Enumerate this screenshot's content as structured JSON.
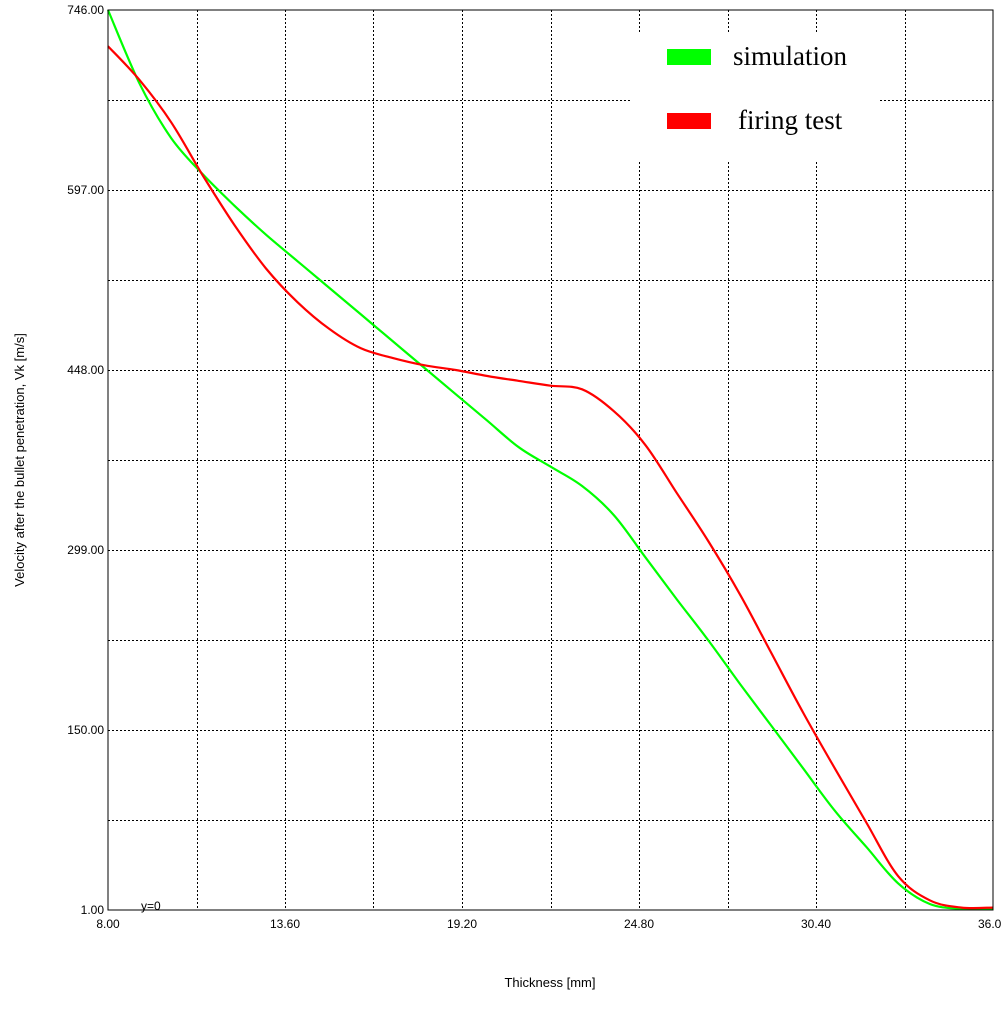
{
  "chart_data": {
    "type": "line",
    "title": "",
    "xlabel": "Thickness [mm]",
    "ylabel": "Velocity after the bullet penetration, Vk [m/s]",
    "xlim": [
      8.0,
      36.0
    ],
    "ylim": [
      1.0,
      746.0
    ],
    "x_ticks": [
      8.0,
      13.6,
      19.2,
      24.8,
      30.4,
      36.0
    ],
    "x_tick_labels": [
      "8.00",
      "13.60",
      "19.20",
      "24.80",
      "30.40",
      "36.00"
    ],
    "x_minor_grid": [
      10.8,
      16.4,
      22.0,
      27.6,
      33.2
    ],
    "y_ticks": [
      1.0,
      150.0,
      299.0,
      448.0,
      597.0,
      746.0
    ],
    "y_tick_labels": [
      "1.00",
      "150.00",
      "299.00",
      "448.00",
      "597.00",
      "746.00"
    ],
    "y_minor_grid": [
      75.5,
      224.5,
      373.5,
      522.5,
      671.5
    ],
    "grid": true,
    "annotation": "y=0",
    "legend_position": "top-right",
    "series": [
      {
        "name": "simulation",
        "color": "#00ff00",
        "x": [
          8.0,
          9.0,
          10.0,
          11.0,
          12.0,
          13.0,
          14.0,
          15.0,
          16.0,
          17.0,
          18.0,
          19.0,
          20.0,
          21.0,
          22.0,
          23.0,
          24.0,
          25.0,
          26.0,
          27.0,
          28.0,
          29.0,
          30.0,
          31.0,
          32.0,
          33.0,
          34.0,
          35.0,
          36.0
        ],
        "y": [
          746,
          685,
          640,
          610,
          584,
          560,
          538,
          516,
          494,
          472,
          450,
          428,
          406,
          384,
          368,
          352,
          328,
          293,
          258,
          224,
          188,
          153,
          118,
          83,
          53,
          23,
          6,
          2,
          2
        ]
      },
      {
        "name": "firing test",
        "color": "#ff0000",
        "x": [
          8.0,
          9.0,
          10.0,
          11.0,
          12.0,
          13.0,
          14.0,
          15.0,
          16.0,
          17.0,
          18.0,
          19.0,
          20.0,
          21.0,
          22.0,
          23.0,
          24.0,
          25.0,
          26.0,
          27.0,
          28.0,
          29.0,
          30.0,
          31.0,
          32.0,
          33.0,
          34.0,
          35.0,
          36.0
        ],
        "y": [
          716,
          688,
          653,
          609,
          568,
          532,
          504,
          482,
          466,
          458,
          452,
          448,
          443,
          439,
          435,
          432,
          414,
          386,
          346,
          306,
          262,
          213,
          164,
          118,
          73,
          29,
          9,
          3,
          3
        ]
      }
    ]
  }
}
